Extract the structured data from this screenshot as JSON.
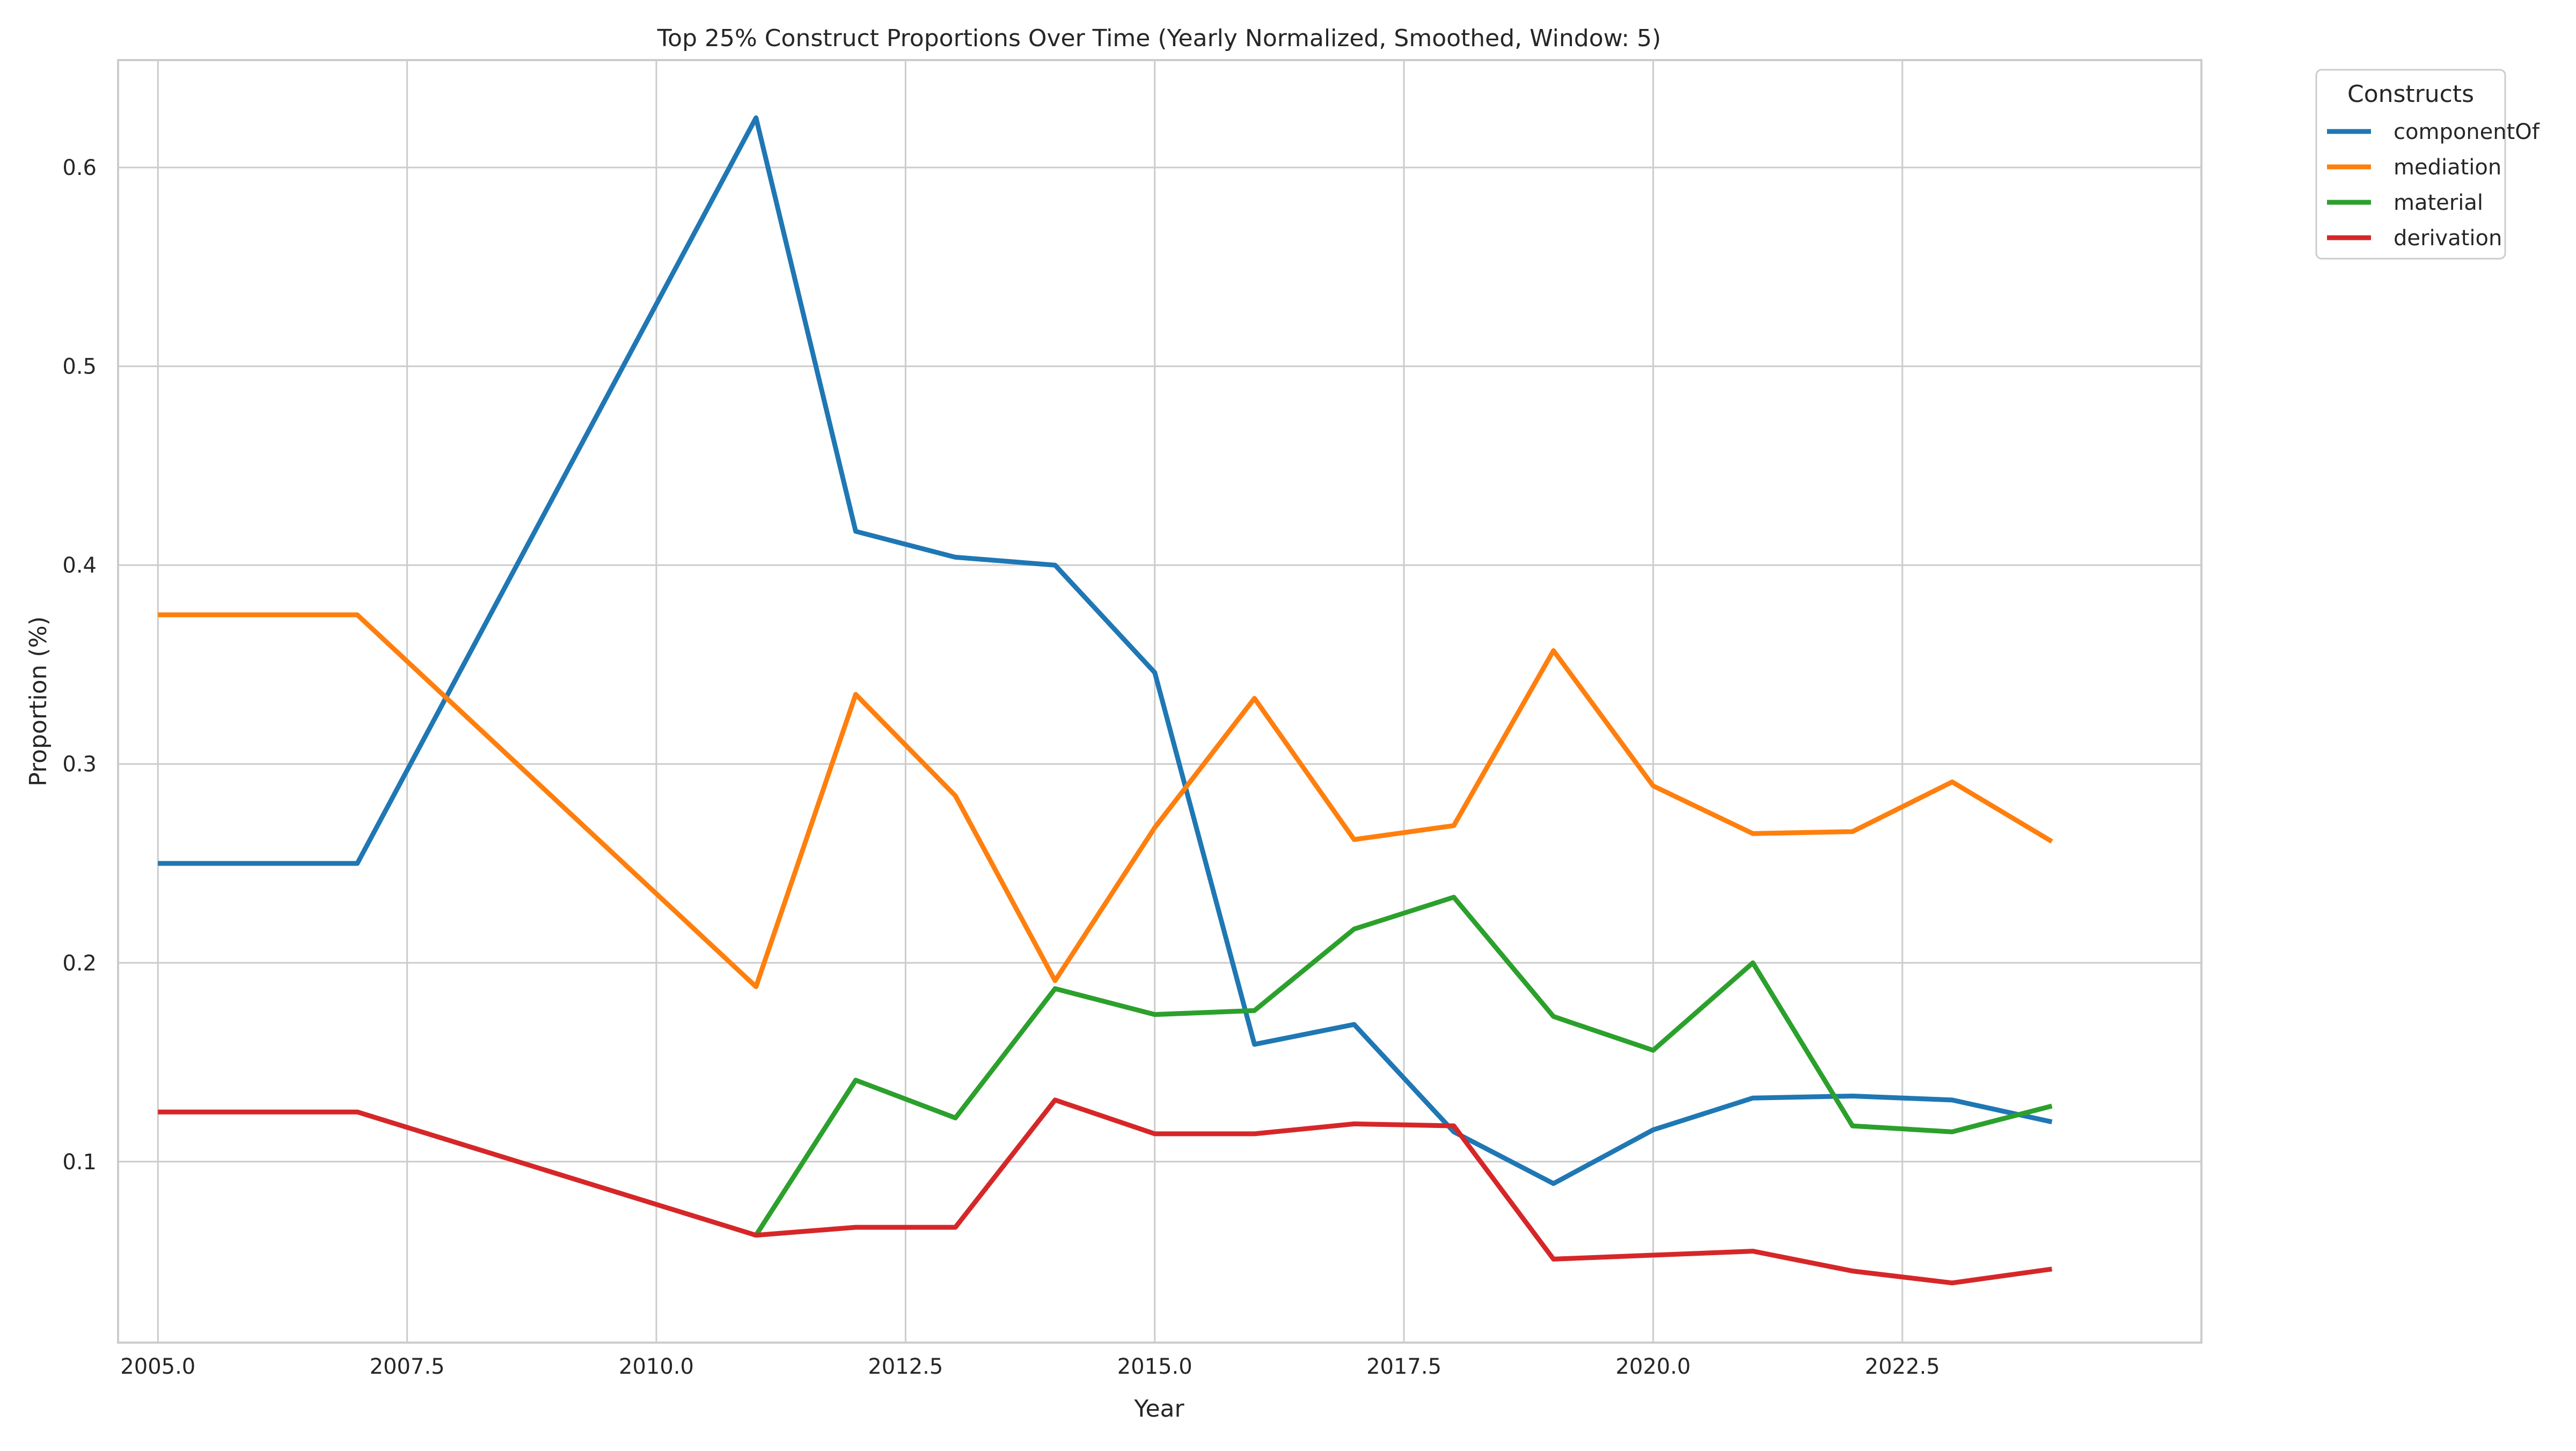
{
  "chart_data": {
    "type": "line",
    "title": "Top 25% Construct Proportions Over Time (Yearly Normalized, Smoothed, Window: 5)",
    "xlabel": "Year",
    "ylabel": "Proportion (%)",
    "xlim": [
      2004.6,
      2025.5
    ],
    "ylim": [
      0.009,
      0.654
    ],
    "x_ticks": [
      2005.0,
      2007.5,
      2010.0,
      2012.5,
      2015.0,
      2017.5,
      2020.0,
      2022.5
    ],
    "x_tick_labels": [
      "2005.0",
      "2007.5",
      "2010.0",
      "2012.5",
      "2015.0",
      "2017.5",
      "2020.0",
      "2022.5"
    ],
    "y_ticks": [
      0.1,
      0.2,
      0.3,
      0.4,
      0.5,
      0.6
    ],
    "y_tick_labels": [
      "0.1",
      "0.2",
      "0.3",
      "0.4",
      "0.5",
      "0.6"
    ],
    "grid": true,
    "legend": {
      "title": "Constructs",
      "placement": "outside top-right"
    },
    "series": [
      {
        "name": "componentOf",
        "color": "#1f77b4",
        "x": [
          2005,
          2007,
          2011,
          2012,
          2013,
          2014,
          2015,
          2016,
          2017,
          2018,
          2019,
          2020,
          2021,
          2022,
          2023,
          2024
        ],
        "y": [
          0.25,
          0.25,
          0.625,
          0.417,
          0.404,
          0.4,
          0.346,
          0.159,
          0.169,
          0.115,
          0.089,
          0.116,
          0.132,
          0.133,
          0.131,
          0.12
        ]
      },
      {
        "name": "mediation",
        "color": "#ff7f0e",
        "x": [
          2005,
          2007,
          2011,
          2012,
          2013,
          2014,
          2015,
          2016,
          2017,
          2018,
          2019,
          2020,
          2021,
          2022,
          2023,
          2024
        ],
        "y": [
          0.375,
          0.375,
          0.188,
          0.335,
          0.284,
          0.191,
          0.268,
          0.333,
          0.262,
          0.269,
          0.357,
          0.289,
          0.265,
          0.266,
          0.291,
          0.261
        ]
      },
      {
        "name": "material",
        "color": "#2ca02c",
        "x": [
          2011,
          2012,
          2013,
          2014,
          2015,
          2016,
          2017,
          2018,
          2019,
          2020,
          2021,
          2022,
          2023,
          2024
        ],
        "y": [
          0.063,
          0.141,
          0.122,
          0.187,
          0.174,
          0.176,
          0.217,
          0.233,
          0.173,
          0.156,
          0.2,
          0.118,
          0.115,
          0.128
        ]
      },
      {
        "name": "derivation",
        "color": "#d62728",
        "x": [
          2005,
          2007,
          2011,
          2012,
          2013,
          2014,
          2015,
          2016,
          2017,
          2018,
          2019,
          2020,
          2021,
          2022,
          2023,
          2024
        ],
        "y": [
          0.125,
          0.125,
          0.063,
          0.067,
          0.067,
          0.131,
          0.114,
          0.114,
          0.119,
          0.118,
          0.051,
          0.053,
          0.055,
          0.045,
          0.039,
          0.046
        ]
      }
    ]
  }
}
